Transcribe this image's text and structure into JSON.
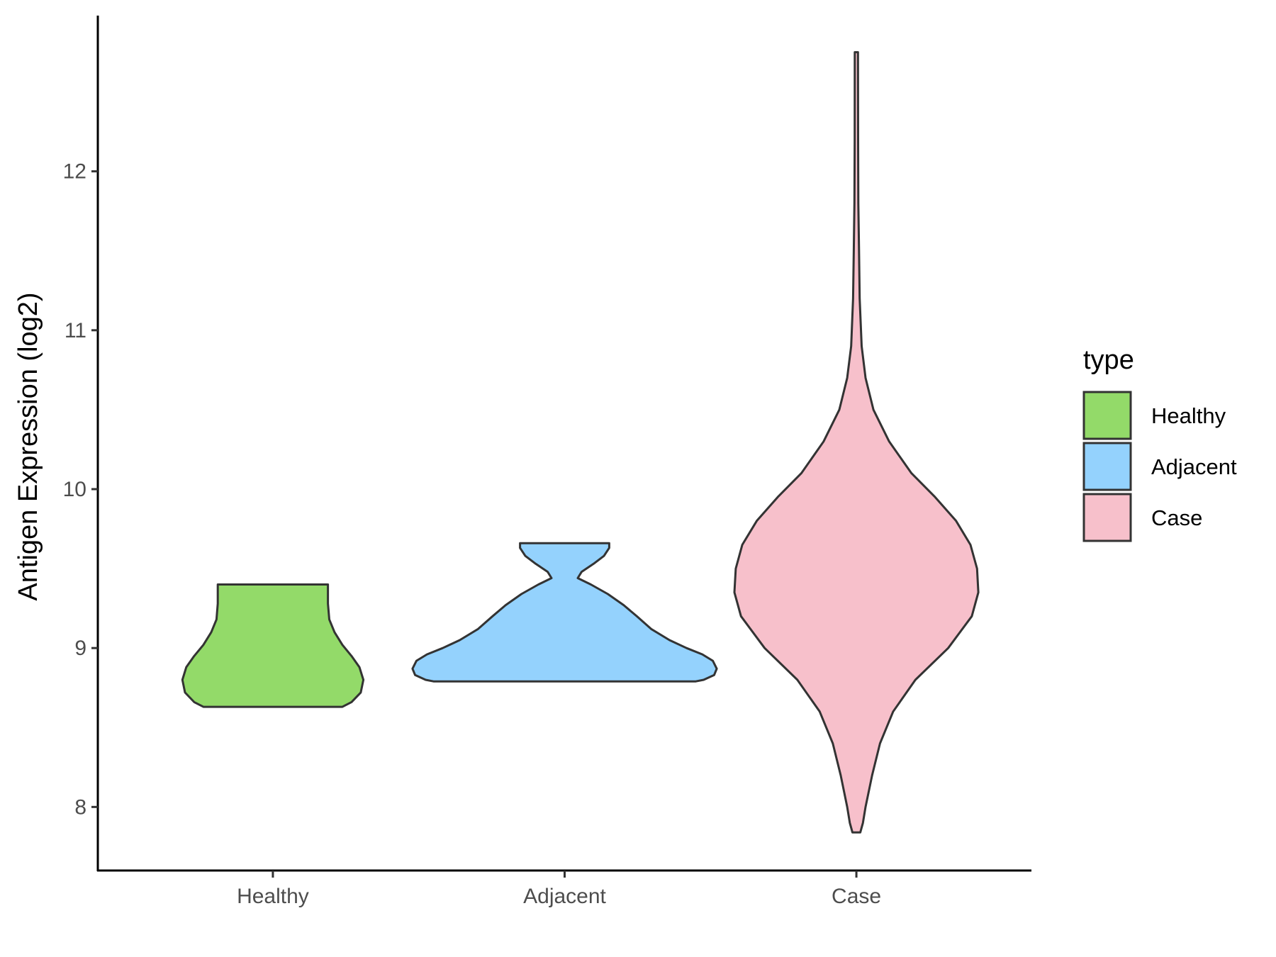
{
  "chart_data": {
    "type": "violin",
    "ylabel": "Antigen Expression (log2)",
    "xlabel": "",
    "categories": [
      "Healthy",
      "Adjacent",
      "Case"
    ],
    "ylim": [
      7.6,
      12.98
    ],
    "yticks": [
      8,
      9,
      10,
      11,
      12
    ],
    "colors": {
      "Healthy": "#93da69",
      "Adjacent": "#94d2fd",
      "Case": "#f7c0cb",
      "outline": "#333333"
    },
    "legend": {
      "title": "type",
      "position": "right",
      "entries": [
        "Healthy",
        "Adjacent",
        "Case"
      ]
    },
    "series": [
      {
        "name": "Healthy",
        "min": 8.63,
        "max": 9.4,
        "profile_y": [
          8.63,
          8.66,
          8.72,
          8.8,
          8.88,
          8.95,
          9.02,
          9.1,
          9.18,
          9.28,
          9.38,
          9.4
        ],
        "profile_w": [
          0.53,
          0.6,
          0.67,
          0.69,
          0.66,
          0.6,
          0.53,
          0.47,
          0.43,
          0.42,
          0.42,
          0.42
        ]
      },
      {
        "name": "Adjacent",
        "min": 8.79,
        "max": 9.66,
        "profile_y": [
          8.79,
          8.8,
          8.83,
          8.87,
          8.92,
          8.96,
          9.0,
          9.05,
          9.12,
          9.2,
          9.27,
          9.34,
          9.4,
          9.44,
          9.48,
          9.53,
          9.58,
          9.63,
          9.66
        ],
        "profile_w": [
          1.0,
          1.06,
          1.14,
          1.16,
          1.13,
          1.05,
          0.93,
          0.8,
          0.66,
          0.55,
          0.45,
          0.33,
          0.2,
          0.1,
          0.13,
          0.22,
          0.3,
          0.34,
          0.34
        ]
      },
      {
        "name": "Case",
        "min": 7.84,
        "max": 12.75,
        "profile_y": [
          7.84,
          7.9,
          8.0,
          8.2,
          8.4,
          8.6,
          8.8,
          9.0,
          9.2,
          9.35,
          9.5,
          9.65,
          9.8,
          9.95,
          10.1,
          10.3,
          10.5,
          10.7,
          10.9,
          11.2,
          11.5,
          11.8,
          12.2,
          12.75
        ],
        "profile_w": [
          0.03,
          0.05,
          0.07,
          0.12,
          0.18,
          0.28,
          0.45,
          0.7,
          0.88,
          0.93,
          0.92,
          0.87,
          0.76,
          0.6,
          0.42,
          0.25,
          0.13,
          0.07,
          0.04,
          0.025,
          0.02,
          0.015,
          0.013,
          0.012
        ]
      }
    ]
  }
}
